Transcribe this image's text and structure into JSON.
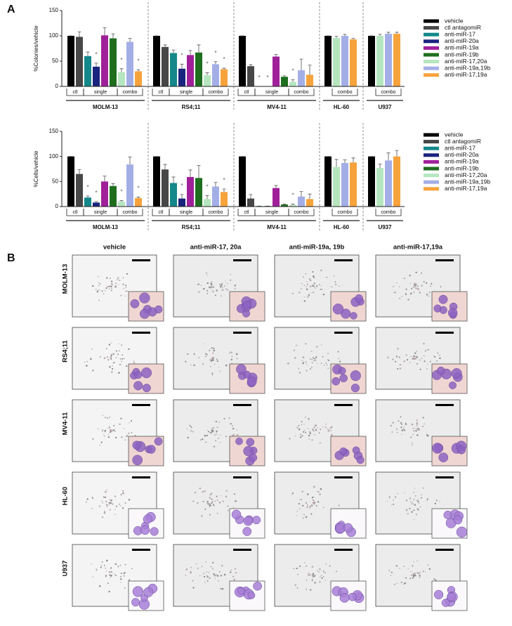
{
  "panel_a_label": "A",
  "chart_data": [
    {
      "type": "bar",
      "ylabel": "%Colonies/vehicle",
      "ylim": [
        0,
        150
      ],
      "yticks": [
        0,
        50,
        100,
        150
      ],
      "categories": [
        "MOLM-13",
        "RS4;11",
        "MV4-11",
        "HL-60",
        "U937"
      ],
      "subgroup_labels": [
        "ctl",
        "single",
        "combo"
      ],
      "significance_marker": "*",
      "series": [
        {
          "name": "vehicle",
          "color": "#000000",
          "values": [
            100,
            100,
            100,
            100,
            100
          ],
          "errors": [
            0,
            0,
            0,
            0,
            0
          ],
          "significant": [
            false,
            false,
            false,
            false,
            false
          ]
        },
        {
          "name": "ctl antagomiR",
          "color": "#474747",
          "values": [
            98,
            78,
            40,
            null,
            null
          ],
          "errors": [
            10,
            4,
            3,
            null,
            null
          ],
          "significant": [
            false,
            false,
            false,
            null,
            null
          ]
        },
        {
          "name": "anti-miR-17",
          "color": "#14888a",
          "values": [
            60,
            66,
            0,
            null,
            null
          ],
          "errors": [
            8,
            6,
            0,
            null,
            null
          ],
          "significant": [
            false,
            false,
            true,
            null,
            null
          ]
        },
        {
          "name": "anti-miR-20a",
          "color": "#1a237e",
          "values": [
            39,
            35,
            0,
            null,
            null
          ],
          "errors": [
            7,
            9,
            0,
            null,
            null
          ],
          "significant": [
            true,
            true,
            true,
            null,
            null
          ]
        },
        {
          "name": "anti-miR-19a",
          "color": "#a0209a",
          "values": [
            101,
            62,
            59,
            null,
            null
          ],
          "errors": [
            15,
            9,
            4,
            null,
            null
          ],
          "significant": [
            false,
            false,
            false,
            null,
            null
          ]
        },
        {
          "name": "anti-miR-19b",
          "color": "#1e6e1e",
          "values": [
            95,
            67,
            19,
            null,
            null
          ],
          "errors": [
            9,
            15,
            2,
            null,
            null
          ],
          "significant": [
            false,
            false,
            false,
            null,
            null
          ]
        },
        {
          "name": "anti-miR-17,20a",
          "color": "#b5e6c0",
          "values": [
            28,
            22,
            9,
            96,
            100
          ],
          "errors": [
            7,
            5,
            4,
            3,
            3
          ],
          "significant": [
            true,
            true,
            true,
            false,
            false
          ]
        },
        {
          "name": "anti-miR-19a,19b",
          "color": "#a4aee6",
          "values": [
            88,
            44,
            32,
            100,
            104
          ],
          "errors": [
            7,
            5,
            22,
            3,
            3
          ],
          "significant": [
            false,
            true,
            false,
            false,
            false
          ]
        },
        {
          "name": "anti-miR-17,19a",
          "color": "#f6a33c",
          "values": [
            30,
            34,
            23,
            93,
            104
          ],
          "errors": [
            3,
            2,
            19,
            2,
            3
          ],
          "significant": [
            true,
            true,
            false,
            false,
            false
          ]
        }
      ]
    },
    {
      "type": "bar",
      "ylabel": "%Cells/vehicle",
      "ylim": [
        0,
        150
      ],
      "yticks": [
        0,
        50,
        100,
        150
      ],
      "categories": [
        "MOLM-13",
        "RS4;11",
        "MV4-11",
        "HL-60",
        "U937"
      ],
      "subgroup_labels": [
        "ctl",
        "single",
        "combo"
      ],
      "significance_marker": "*",
      "series": [
        {
          "name": "vehicle",
          "color": "#000000",
          "values": [
            100,
            100,
            100,
            100,
            100
          ],
          "errors": [
            0,
            0,
            0,
            0,
            0
          ],
          "significant": [
            false,
            false,
            false,
            false,
            false
          ]
        },
        {
          "name": "ctl antagomiR",
          "color": "#474747",
          "values": [
            65,
            74,
            16,
            null,
            null
          ],
          "errors": [
            9,
            10,
            8,
            null,
            null
          ],
          "significant": [
            false,
            false,
            false,
            null,
            null
          ]
        },
        {
          "name": "anti-miR-17",
          "color": "#14888a",
          "values": [
            18,
            47,
            1,
            null,
            null
          ],
          "errors": [
            3,
            12,
            0,
            null,
            null
          ],
          "significant": [
            true,
            false,
            false,
            null,
            null
          ]
        },
        {
          "name": "anti-miR-20a",
          "color": "#1a237e",
          "values": [
            8,
            16,
            1,
            null,
            null
          ],
          "errors": [
            2,
            8,
            0,
            null,
            null
          ],
          "significant": [
            true,
            true,
            false,
            null,
            null
          ]
        },
        {
          "name": "anti-miR-19a",
          "color": "#a0209a",
          "values": [
            50,
            59,
            37,
            null,
            null
          ],
          "errors": [
            11,
            14,
            5,
            null,
            null
          ],
          "significant": [
            false,
            false,
            false,
            null,
            null
          ]
        },
        {
          "name": "anti-miR-19b",
          "color": "#1e6e1e",
          "values": [
            41,
            57,
            4,
            null,
            null
          ],
          "errors": [
            5,
            25,
            1,
            null,
            null
          ],
          "significant": [
            false,
            false,
            false,
            null,
            null
          ]
        },
        {
          "name": "anti-miR-17,20a",
          "color": "#b5e6c0",
          "values": [
            10,
            15,
            3,
            79,
            77
          ],
          "errors": [
            2,
            7,
            2,
            15,
            8
          ],
          "significant": [
            true,
            true,
            true,
            false,
            false
          ]
        },
        {
          "name": "anti-miR-19a,19b",
          "color": "#a4aee6",
          "values": [
            84,
            40,
            20,
            87,
            92
          ],
          "errors": [
            15,
            8,
            10,
            6,
            15
          ],
          "significant": [
            false,
            false,
            false,
            false,
            false
          ]
        },
        {
          "name": "anti-miR-17,19a",
          "color": "#f6a33c",
          "values": [
            17,
            29,
            15,
            88,
            100
          ],
          "errors": [
            2,
            6,
            10,
            9,
            12
          ],
          "significant": [
            true,
            true,
            false,
            false,
            false
          ]
        }
      ]
    }
  ],
  "panel_b": {
    "label": "B",
    "columns": [
      "vehicle",
      "anti-miR-17, 20a",
      "anti-miR-19a, 19b",
      "anti-miR-17,19a"
    ],
    "rows": [
      "MOLM-13",
      "RS4;11",
      "MV4-11",
      "HL-60",
      "U937"
    ]
  }
}
